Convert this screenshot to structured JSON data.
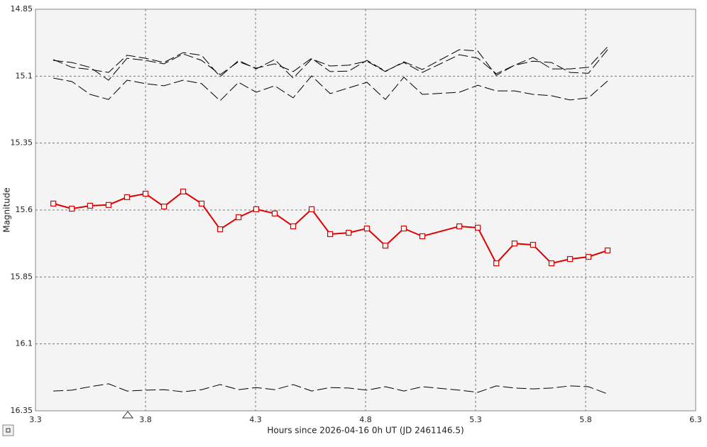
{
  "chart_data": {
    "type": "line",
    "x_label": "Hours since 2026-04-16 0h UT (JD 2461146.5)",
    "y_label": "Magnitude",
    "x": [
      3.381,
      3.465,
      3.548,
      3.632,
      3.716,
      3.8,
      3.884,
      3.971,
      4.055,
      4.139,
      4.223,
      4.303,
      4.387,
      4.471,
      4.555,
      4.639,
      4.723,
      4.806,
      4.89,
      4.974,
      5.058,
      5.226,
      5.31,
      5.394,
      5.477,
      5.561,
      5.645,
      5.729,
      5.813,
      5.9
    ],
    "series": [
      {
        "color": "#e00000",
        "marker": "square",
        "dashed": false,
        "values": [
          15.576,
          15.595,
          15.584,
          15.581,
          15.552,
          15.539,
          15.587,
          15.531,
          15.576,
          15.672,
          15.627,
          15.597,
          15.613,
          15.661,
          15.597,
          15.69,
          15.685,
          15.669,
          15.733,
          15.669,
          15.698,
          15.661,
          15.666,
          15.799,
          15.725,
          15.73,
          15.799,
          15.783,
          15.775,
          15.751
        ]
      },
      {
        "color": "#000000",
        "dashed": true,
        "values": [
          15.038,
          15.067,
          15.075,
          15.086,
          15.022,
          15.033,
          15.049,
          15.012,
          15.022,
          15.102,
          15.041,
          15.073,
          15.038,
          15.107,
          15.036,
          15.062,
          15.059,
          15.044,
          15.083,
          15.046,
          15.075,
          15.001,
          15.006,
          15.097,
          15.059,
          15.03,
          15.073,
          15.073,
          15.067,
          14.99
        ]
      },
      {
        "color": "#000000",
        "dashed": true,
        "values": [
          15.041,
          15.049,
          15.067,
          15.115,
          15.033,
          15.041,
          15.054,
          15.017,
          15.041,
          15.094,
          15.046,
          15.07,
          15.054,
          15.083,
          15.033,
          15.083,
          15.081,
          15.041,
          15.081,
          15.049,
          15.086,
          15.02,
          15.033,
          15.091,
          15.059,
          15.044,
          15.049,
          15.086,
          15.089,
          15.001
        ]
      },
      {
        "color": "#000000",
        "dashed": true,
        "values": [
          15.107,
          15.12,
          15.168,
          15.187,
          15.115,
          15.128,
          15.136,
          15.115,
          15.128,
          15.192,
          15.123,
          15.16,
          15.136,
          15.181,
          15.099,
          15.165,
          15.144,
          15.123,
          15.187,
          15.104,
          15.168,
          15.16,
          15.134,
          15.155,
          15.155,
          15.168,
          15.173,
          15.189,
          15.181,
          15.118
        ]
      },
      {
        "color": "#000000",
        "dashed": true,
        "values": [
          16.276,
          16.273,
          16.26,
          16.249,
          16.276,
          16.273,
          16.271,
          16.279,
          16.271,
          16.252,
          16.271,
          16.263,
          16.271,
          16.252,
          16.276,
          16.263,
          16.265,
          16.273,
          16.26,
          16.276,
          16.26,
          16.273,
          16.281,
          16.257,
          16.265,
          16.268,
          16.265,
          16.257,
          16.26,
          16.287
        ]
      }
    ],
    "xlim": [
      3.3,
      6.3
    ],
    "xticks": [
      3.3,
      3.8,
      4.3,
      4.8,
      5.3,
      5.8,
      6.3
    ],
    "ylim": [
      14.85,
      16.35
    ],
    "yticks": [
      14.85,
      15.1,
      15.35,
      15.6,
      15.85,
      16.1,
      16.35
    ],
    "y_inverted": true,
    "grid": true
  }
}
